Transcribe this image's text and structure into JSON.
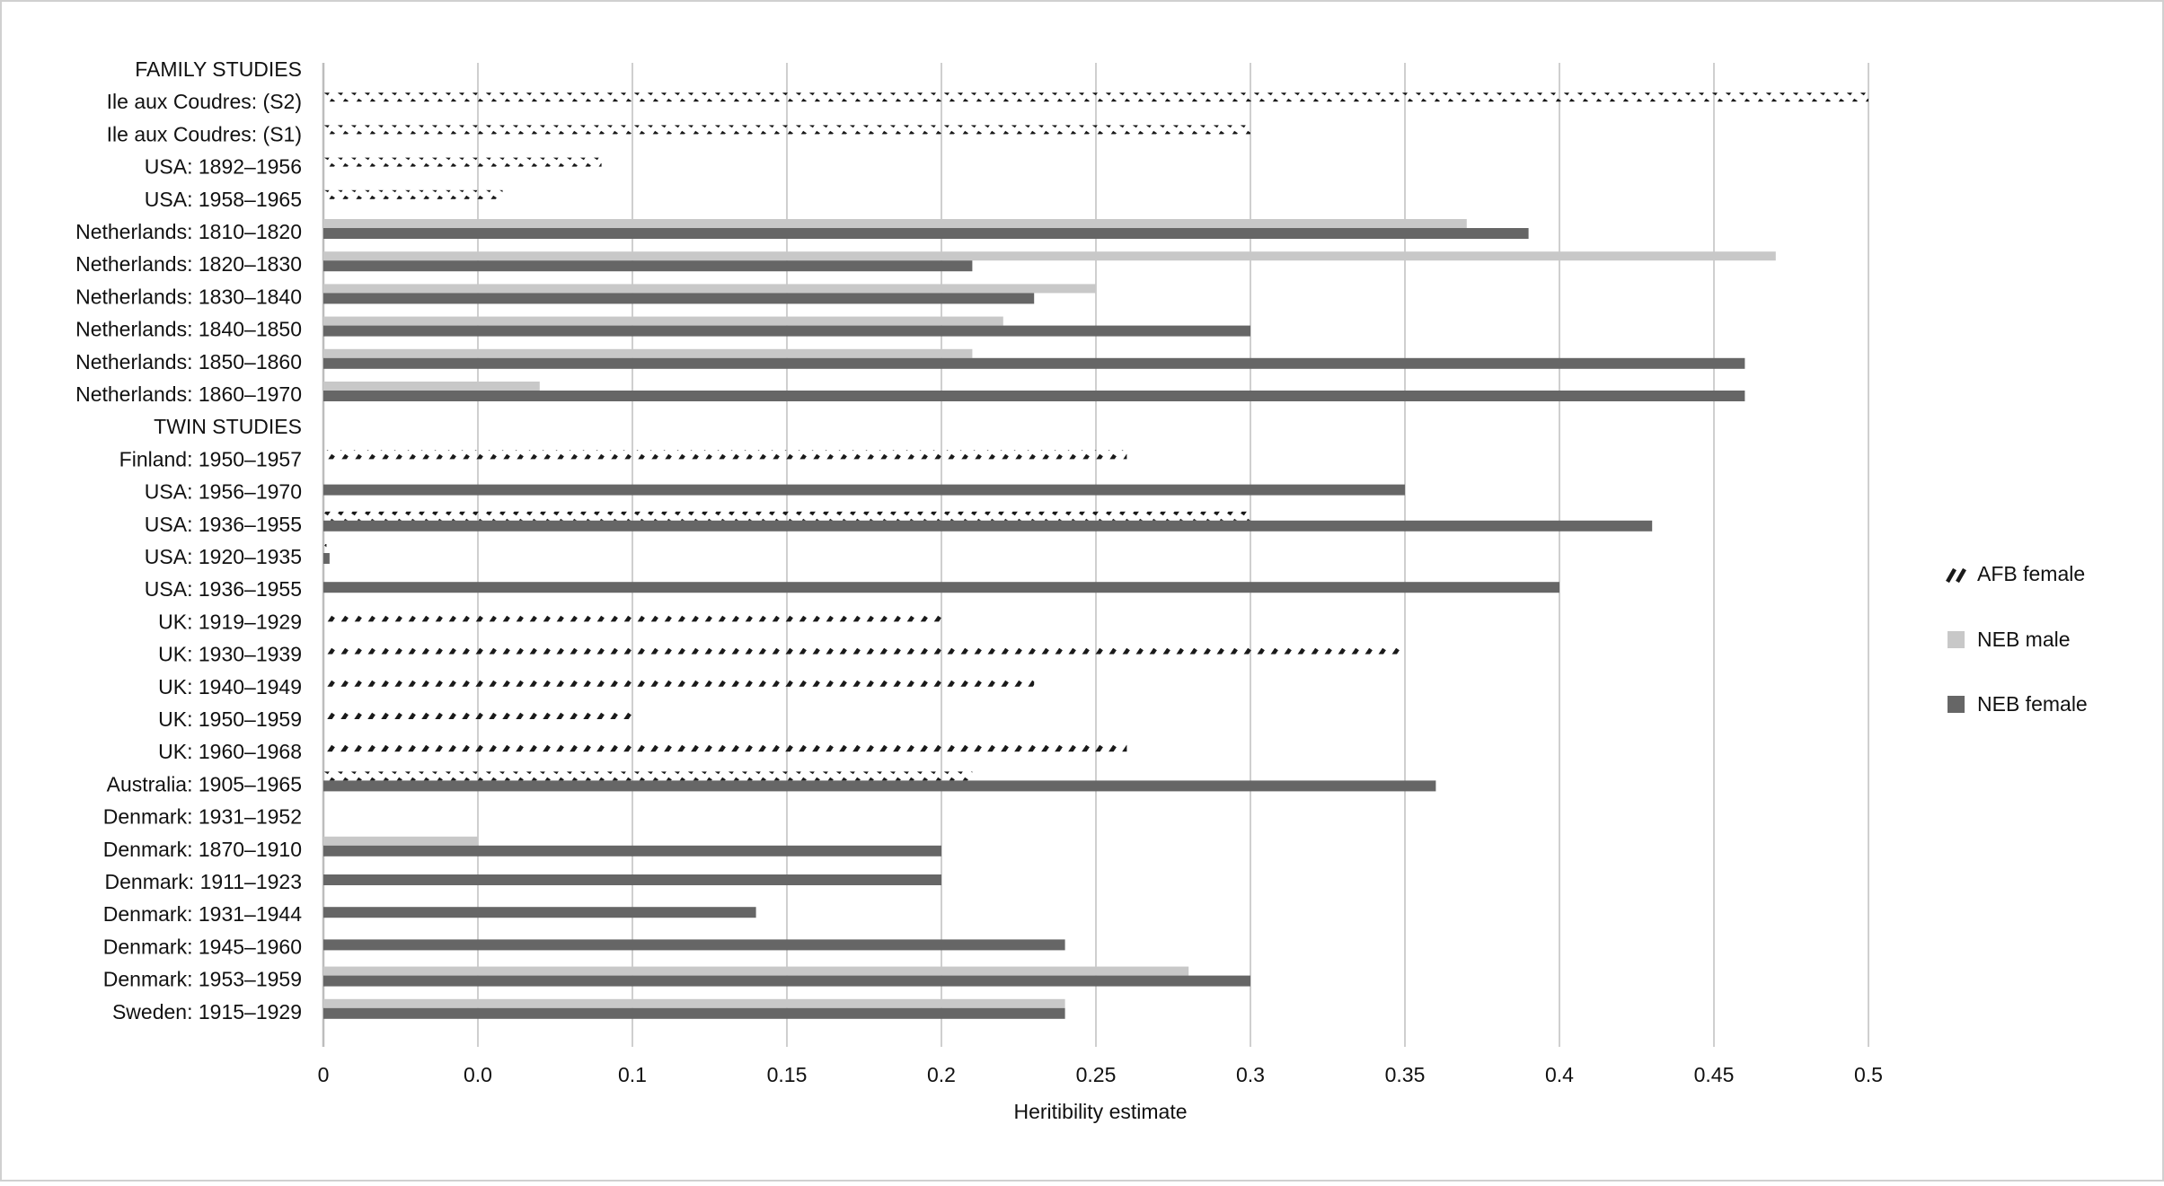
{
  "chart_data": {
    "type": "bar",
    "orientation": "horizontal",
    "title": "",
    "xlabel": "Heritibility estimate",
    "ylabel": "",
    "xlim": [
      0,
      0.5
    ],
    "x_tick_labels": [
      "0",
      "0.0",
      "0.1",
      "0.15",
      "0.2",
      "0.25",
      "0.3",
      "0.35",
      "0.4",
      "0.45",
      "0.5"
    ],
    "grid": "vertical",
    "legend_position": "right",
    "categories": [
      "FAMILY STUDIES",
      "Ile aux Coudres: (S2)",
      "Ile aux Coudres: (S1)",
      "USA: 1892–1956",
      "USA: 1958–1965",
      "Netherlands: 1810–1820",
      "Netherlands: 1820–1830",
      "Netherlands: 1830–1840",
      "Netherlands: 1840–1850",
      "Netherlands: 1850–1860",
      "Netherlands: 1860–1970",
      "TWIN STUDIES",
      "Finland: 1950–1957",
      "USA: 1956–1970",
      "USA: 1936–1955",
      "USA: 1920–1935",
      "USA: 1936–1955",
      "UK: 1919–1929",
      "UK: 1930–1939",
      "UK: 1940–1949",
      "UK: 1950–1959",
      "UK: 1960–1968",
      "Australia: 1905–1965",
      "Denmark: 1931–1952",
      "Denmark: 1870–1910",
      "Denmark: 1911–1923",
      "Denmark: 1931–1944",
      "Denmark: 1945–1960",
      "Denmark: 1953–1959",
      "Sweden: 1915–1929"
    ],
    "series": [
      {
        "name": "AFB female",
        "style": "hatched",
        "color": "#1a1a1a",
        "values": [
          null,
          0.5,
          0.3,
          0.09,
          0.058,
          null,
          null,
          null,
          null,
          null,
          null,
          null,
          0.26,
          null,
          0.3,
          0.001,
          null,
          0.2,
          0.35,
          0.23,
          0.1,
          0.26,
          0.21,
          0.001,
          null,
          null,
          null,
          null,
          null,
          null
        ]
      },
      {
        "name": "NEB male",
        "style": "solid",
        "color": "#c8c8c8",
        "values": [
          null,
          null,
          null,
          null,
          null,
          0.37,
          0.47,
          0.25,
          0.22,
          0.21,
          0.07,
          null,
          null,
          null,
          null,
          null,
          null,
          null,
          null,
          null,
          null,
          null,
          null,
          null,
          0.05,
          null,
          null,
          null,
          0.28,
          0.24
        ]
      },
      {
        "name": "NEB female",
        "style": "solid",
        "color": "#666666",
        "values": [
          null,
          null,
          null,
          null,
          null,
          0.39,
          0.21,
          0.23,
          0.3,
          0.46,
          0.46,
          null,
          null,
          0.35,
          0.43,
          0.002,
          0.4,
          null,
          null,
          null,
          null,
          null,
          0.36,
          null,
          0.2,
          0.2,
          0.14,
          0.24,
          0.3,
          0.24
        ]
      }
    ]
  }
}
